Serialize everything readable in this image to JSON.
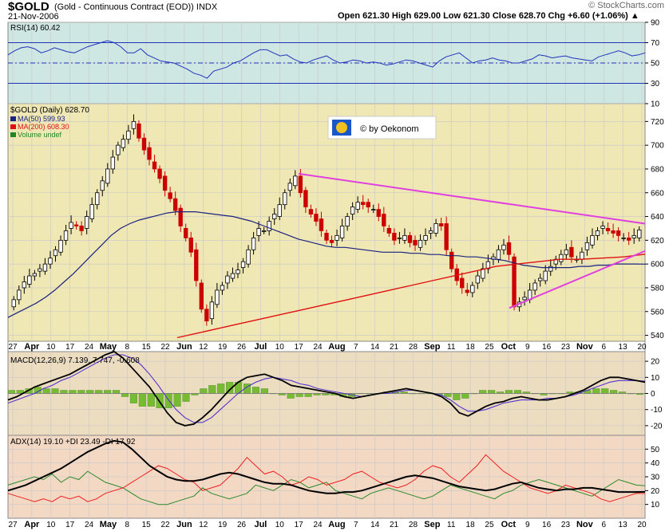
{
  "header": {
    "symbol": "$GOLD",
    "description": "(Gold - Continuous Contract (EOD))",
    "exchange": "INDX",
    "date": "21-Nov-2006",
    "ohlc_text": "Open 621.30 High 629.00 Low 621.30 Close 628.70 Chg +6.60 (+1.06%) ▲",
    "brand": "© StockCharts.com"
  },
  "watermark": "© by Oekonom",
  "colors": {
    "rsi_bg": "#cfe7e3",
    "price_bg": "#efe7b4",
    "macd_bg": "#ecdcc0",
    "adx_bg": "#f3d8c4",
    "up": "#000000",
    "down": "#cc0000",
    "ma50": "#1a237e",
    "ma200": "#e01010",
    "trend": "#e040e0",
    "rsi_line": "#2233bb",
    "macd_line": "#000000",
    "signal": "#5533cc",
    "hist": "#77bb33",
    "adx_line": "#000000",
    "pdi": "#2a8a2a",
    "mdi": "#ee2020"
  },
  "chart_data": [
    {
      "type": "line",
      "panel": "rsi",
      "title": "RSI(14) 60.42",
      "last_value": 60.42,
      "y_ticks": [
        10,
        30,
        50,
        70,
        90
      ],
      "y_range": [
        10,
        90
      ],
      "reference_lines": [
        30,
        50,
        70
      ],
      "values": [
        58,
        62,
        65,
        66,
        64,
        60,
        62,
        65,
        63,
        61,
        60,
        63,
        66,
        68,
        70,
        72,
        70,
        66,
        60,
        60,
        64,
        58,
        55,
        52,
        51,
        50,
        47,
        44,
        40,
        38,
        35,
        42,
        44,
        46,
        50,
        52,
        56,
        60,
        63,
        63,
        60,
        57,
        58,
        54,
        51,
        50,
        53,
        55,
        57,
        53,
        50,
        51,
        53,
        52,
        50,
        51,
        50,
        48,
        49,
        51,
        53,
        52,
        50,
        48,
        46,
        52,
        56,
        58,
        60,
        55,
        50,
        52,
        53,
        55,
        53,
        52,
        50,
        50,
        52,
        54,
        58,
        57,
        55,
        56,
        57,
        55,
        54,
        53,
        52,
        56,
        58,
        60,
        62,
        60,
        57,
        58,
        60
      ]
    },
    {
      "type": "candlestick",
      "panel": "price",
      "title": "$GOLD (Daily) 628.70",
      "legend": [
        "MA(50) 599.93",
        "MA(200) 608.30",
        "Volume undef"
      ],
      "last_close": 628.7,
      "y_ticks": [
        540,
        560,
        580,
        600,
        620,
        640,
        660,
        680,
        700,
        720
      ],
      "y_range": [
        535,
        735
      ],
      "x_ticks": [
        "27",
        "Apr",
        "10",
        "17",
        "24",
        "May",
        "8",
        "15",
        "22",
        "Jun",
        "12",
        "19",
        "26",
        "Jul",
        "10",
        "17",
        "24",
        "Aug",
        "7",
        "14",
        "21",
        "28",
        "Sep",
        "11",
        "18",
        "25",
        "Oct",
        "9",
        "16",
        "23",
        "Nov",
        "6",
        "13",
        "20"
      ],
      "closes": [
        570,
        578,
        585,
        590,
        592,
        596,
        600,
        605,
        612,
        620,
        628,
        635,
        632,
        628,
        640,
        650,
        660,
        670,
        680,
        690,
        700,
        705,
        712,
        720,
        706,
        696,
        688,
        680,
        672,
        662,
        655,
        645,
        632,
        622,
        610,
        586,
        562,
        552,
        568,
        578,
        582,
        590,
        592,
        595,
        602,
        612,
        622,
        630,
        628,
        636,
        642,
        650,
        660,
        668,
        674,
        660,
        648,
        642,
        636,
        628,
        620,
        618,
        624,
        632,
        640,
        648,
        652,
        650,
        648,
        646,
        640,
        632,
        626,
        620,
        622,
        624,
        618,
        616,
        620,
        624,
        628,
        634,
        632,
        612,
        596,
        586,
        580,
        576,
        582,
        590,
        596,
        602,
        606,
        612,
        616,
        608,
        564,
        568,
        572,
        578,
        584,
        588,
        594,
        598,
        604,
        608,
        612,
        606,
        604,
        610,
        618,
        624,
        628,
        632,
        628,
        626,
        624,
        622,
        620,
        624,
        628.7
      ],
      "ma50": [
        555,
        559,
        563,
        567,
        572,
        578,
        585,
        592,
        600,
        608,
        616,
        624,
        630,
        634,
        637,
        639,
        641,
        643,
        644,
        644,
        644,
        643,
        642,
        641,
        640,
        638,
        636,
        633,
        630,
        627,
        624,
        621,
        619,
        617,
        615,
        614,
        614,
        613,
        612,
        611,
        610,
        610,
        610,
        609,
        609,
        608,
        608,
        607,
        607,
        606,
        606,
        605,
        604,
        603,
        601,
        599,
        598,
        597,
        597,
        597,
        597,
        598,
        598,
        599,
        599,
        600,
        600,
        600,
        599.93
      ],
      "ma200": [
        538,
        542,
        546,
        550,
        554,
        558,
        562,
        566,
        570,
        574,
        578,
        582,
        586,
        590,
        594,
        598,
        600,
        602,
        604,
        604,
        605,
        606,
        608.3
      ],
      "trendlines": [
        {
          "from": [
            "Jul 14",
            676
          ],
          "to": [
            "Nov 21",
            634
          ]
        },
        {
          "from": [
            "Oct 5",
            563
          ],
          "to": [
            "Nov 21",
            611
          ]
        }
      ]
    },
    {
      "type": "line",
      "panel": "macd",
      "title": "MACD(12,26,9) 7.139, 7.747, -0.608",
      "macd": 7.139,
      "signal": 7.747,
      "histogram": -0.608,
      "y_ticks": [
        -20,
        -10,
        0,
        10,
        20
      ],
      "y_range": [
        -26,
        26
      ],
      "macd_values": [
        -4,
        -2,
        1,
        4,
        6,
        8,
        10,
        12,
        15,
        18,
        21,
        24,
        26,
        22,
        16,
        10,
        4,
        -4,
        -12,
        -18,
        -20,
        -19,
        -15,
        -10,
        -4,
        2,
        7,
        10,
        11,
        12,
        10,
        8,
        5,
        4,
        3,
        2,
        1,
        0,
        -2,
        -3,
        -2,
        -1,
        0,
        1,
        2,
        3,
        2,
        1,
        0,
        -2,
        -6,
        -12,
        -14,
        -11,
        -8,
        -6,
        -5,
        -3,
        -2,
        -3,
        -4,
        -4,
        -3,
        -2,
        0,
        2,
        5,
        8,
        10,
        10,
        9,
        8,
        7
      ],
      "signal_values": [
        -6,
        -4,
        -2,
        0,
        3,
        5,
        8,
        10,
        13,
        16,
        19,
        22,
        24,
        24,
        22,
        18,
        12,
        5,
        -3,
        -10,
        -15,
        -18,
        -18,
        -15,
        -10,
        -5,
        0,
        4,
        7,
        9,
        10,
        9,
        8,
        6,
        5,
        3,
        2,
        1,
        0,
        -1,
        -2,
        -1,
        0,
        0,
        1,
        2,
        2,
        1,
        0,
        -1,
        -4,
        -8,
        -11,
        -11,
        -10,
        -8,
        -6,
        -5,
        -4,
        -4,
        -4,
        -3,
        -3,
        -2,
        -1,
        1,
        3,
        5,
        7,
        8,
        8,
        8,
        7.7
      ]
    },
    {
      "type": "line",
      "panel": "adx",
      "title": "ADX(14) 19.10 +DI 23.49 -DI 17.92",
      "adx": 19.1,
      "plus_di": 23.49,
      "minus_di": 17.92,
      "y_ticks": [
        10,
        20,
        30,
        40,
        50
      ],
      "y_range": [
        0,
        60
      ],
      "adx_values": [
        20,
        22,
        24,
        27,
        30,
        33,
        36,
        40,
        44,
        48,
        51,
        54,
        56,
        55,
        50,
        44,
        38,
        34,
        30,
        28,
        27,
        27,
        28,
        30,
        32,
        33,
        32,
        30,
        28,
        26,
        25,
        25,
        24,
        22,
        20,
        19,
        18,
        18,
        19,
        19,
        20,
        22,
        24,
        26,
        28,
        30,
        31,
        30,
        29,
        27,
        25,
        23,
        22,
        21,
        20,
        21,
        23,
        25,
        26,
        24,
        22,
        21,
        20,
        21,
        21,
        22,
        22,
        21,
        20,
        19,
        19,
        19,
        19.1
      ],
      "plus_di_values": [
        24,
        26,
        28,
        30,
        28,
        32,
        26,
        30,
        28,
        34,
        30,
        26,
        24,
        22,
        18,
        14,
        12,
        10,
        10,
        12,
        14,
        16,
        22,
        18,
        16,
        14,
        16,
        18,
        24,
        22,
        20,
        24,
        28,
        26,
        22,
        24,
        26,
        20,
        18,
        16,
        14,
        18,
        20,
        22,
        20,
        18,
        16,
        14,
        16,
        20,
        24,
        22,
        20,
        18,
        16,
        14,
        18,
        20,
        24,
        26,
        28,
        26,
        24,
        22,
        20,
        18,
        16,
        20,
        24,
        28,
        26,
        24,
        23.5
      ],
      "minus_di_values": [
        18,
        16,
        14,
        12,
        14,
        12,
        16,
        14,
        16,
        12,
        14,
        18,
        20,
        22,
        26,
        30,
        34,
        38,
        36,
        32,
        28,
        26,
        20,
        22,
        24,
        30,
        36,
        44,
        38,
        32,
        34,
        30,
        24,
        26,
        30,
        28,
        24,
        26,
        28,
        32,
        34,
        30,
        26,
        24,
        22,
        24,
        28,
        34,
        38,
        36,
        30,
        26,
        32,
        38,
        46,
        40,
        34,
        30,
        26,
        22,
        20,
        18,
        20,
        24,
        22,
        20,
        18,
        14,
        12,
        14,
        16,
        18,
        17.9
      ]
    }
  ]
}
